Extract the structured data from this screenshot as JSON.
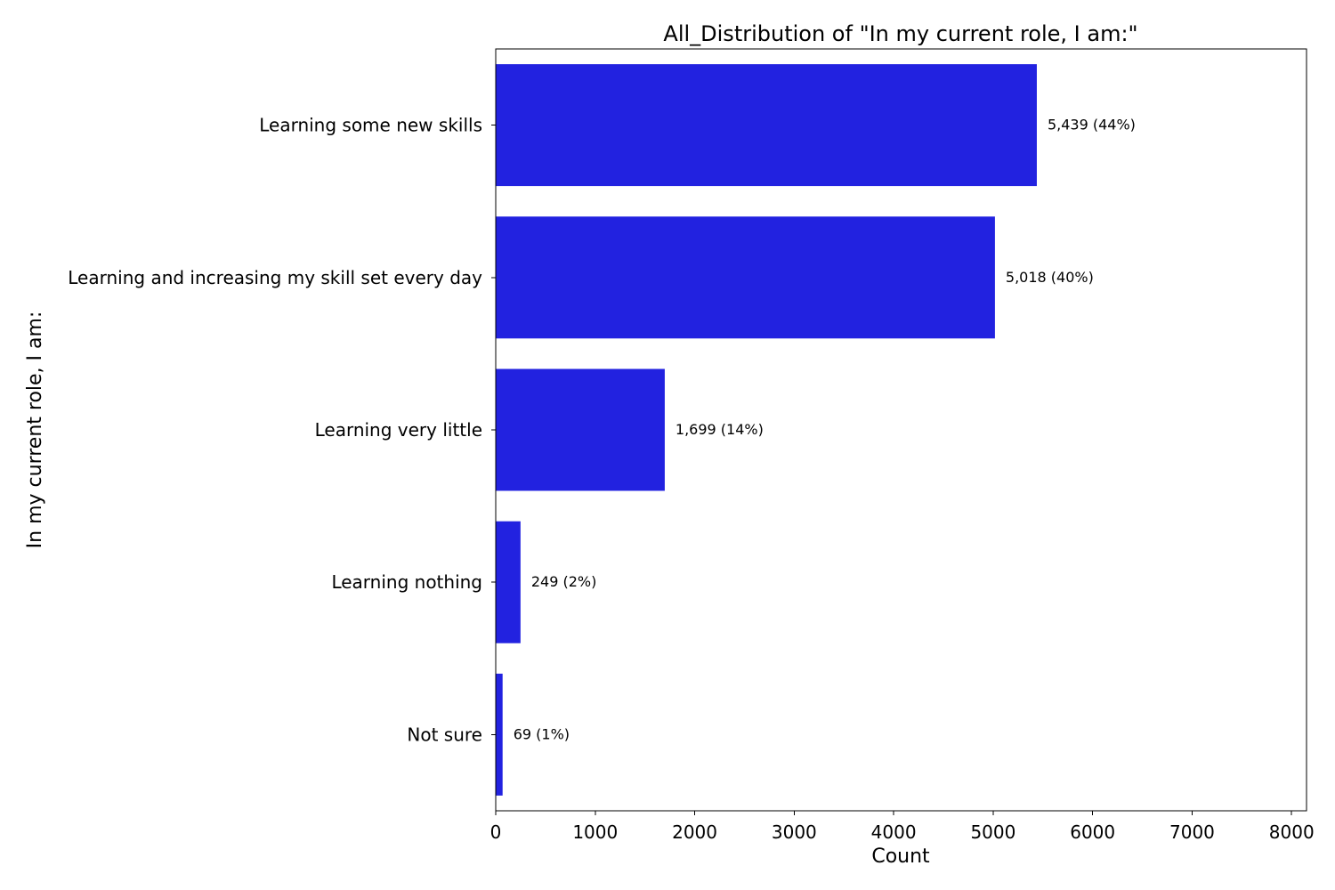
{
  "chart_data": {
    "type": "bar",
    "orientation": "horizontal",
    "title": "All_Distribution of \"In my current role, I am:\"",
    "xlabel": "Count",
    "ylabel": "In my current role, I am:",
    "categories": [
      "Learning some new skills",
      "Learning and increasing my skill set every day",
      "Learning very little",
      "Learning nothing",
      "Not sure"
    ],
    "values": [
      5439,
      5018,
      1699,
      249,
      69
    ],
    "value_labels": [
      "5,439 (44%)",
      "5,018 (40%)",
      "1,699 (14%)",
      "249 (2%)",
      "69 (1%)"
    ],
    "xticks": [
      0,
      1000,
      2000,
      3000,
      4000,
      5000,
      6000,
      7000,
      8000
    ],
    "xlim": [
      0,
      8150
    ],
    "grid": false,
    "colors": {
      "bar": "#2222e0",
      "axis": "#000000",
      "text": "#000000",
      "background": "#ffffff"
    }
  }
}
